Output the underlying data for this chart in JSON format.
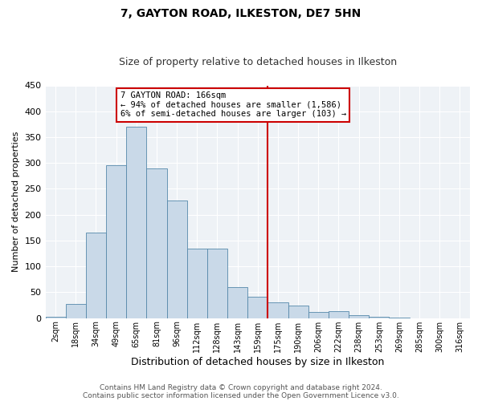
{
  "title": "7, GAYTON ROAD, ILKESTON, DE7 5HN",
  "subtitle": "Size of property relative to detached houses in Ilkeston",
  "xlabel": "Distribution of detached houses by size in Ilkeston",
  "ylabel": "Number of detached properties",
  "bar_labels": [
    "2sqm",
    "18sqm",
    "34sqm",
    "49sqm",
    "65sqm",
    "81sqm",
    "96sqm",
    "112sqm",
    "128sqm",
    "143sqm",
    "159sqm",
    "175sqm",
    "190sqm",
    "206sqm",
    "222sqm",
    "238sqm",
    "253sqm",
    "269sqm",
    "285sqm",
    "300sqm",
    "316sqm"
  ],
  "bar_heights": [
    2,
    28,
    165,
    295,
    370,
    290,
    228,
    135,
    135,
    60,
    42,
    30,
    24,
    12,
    13,
    5,
    2,
    1,
    0,
    0,
    0
  ],
  "bar_color": "#c9d9e8",
  "bar_edge_color": "#5588aa",
  "vline_x_idx": 10.5,
  "vline_color": "#cc0000",
  "ylim": [
    0,
    450
  ],
  "annotation_title": "7 GAYTON ROAD: 166sqm",
  "annotation_line1": "← 94% of detached houses are smaller (1,586)",
  "annotation_line2": "6% of semi-detached houses are larger (103) →",
  "annotation_box_color": "#cc0000",
  "footer_line1": "Contains HM Land Registry data © Crown copyright and database right 2024.",
  "footer_line2": "Contains public sector information licensed under the Open Government Licence v3.0.",
  "background_color": "#ffffff",
  "plot_background": "#eef2f6",
  "grid_color": "#ffffff",
  "title_fontsize": 10,
  "subtitle_fontsize": 9,
  "ylabel_fontsize": 8,
  "xlabel_fontsize": 9
}
